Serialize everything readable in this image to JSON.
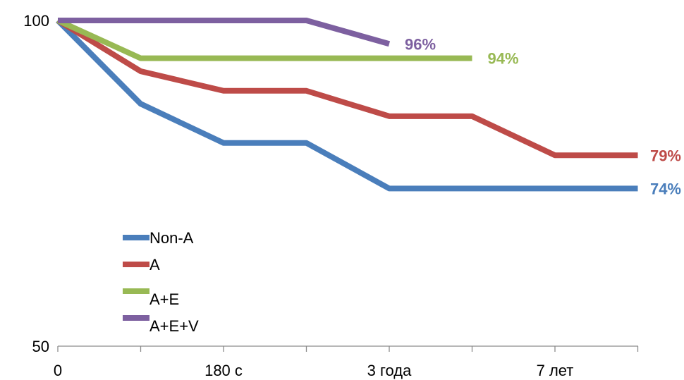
{
  "chart_data": {
    "type": "line",
    "title": "",
    "xlabel": "",
    "ylabel": "",
    "ylim": [
      50,
      100
    ],
    "y_ticks": [
      "50",
      "100"
    ],
    "x_tick_labels": [
      "0",
      "180 с",
      "3 года",
      "7 лет"
    ],
    "x_points": 8,
    "grid": false,
    "legend_position": "bottom-left",
    "series": [
      {
        "name": "Non-A",
        "color": "#4a7ebb",
        "values": [
          100,
          87.2,
          81.2,
          81.2,
          74.2,
          74.2,
          74.2,
          74.2
        ],
        "end_label": "74%"
      },
      {
        "name": "A",
        "color": "#be4b48",
        "values": [
          100,
          92.2,
          89.2,
          89.2,
          85.3,
          85.3,
          79.3,
          79.3
        ],
        "end_label": "79%"
      },
      {
        "name": "A+E",
        "color": "#98b954",
        "values": [
          100,
          94.2,
          94.2,
          94.2,
          94.2,
          94.2
        ],
        "end_label": "94%"
      },
      {
        "name": "A+E+V",
        "color": "#7d60a0",
        "values": [
          100,
          100,
          100,
          100,
          96.4
        ],
        "end_label": "96%"
      }
    ]
  }
}
